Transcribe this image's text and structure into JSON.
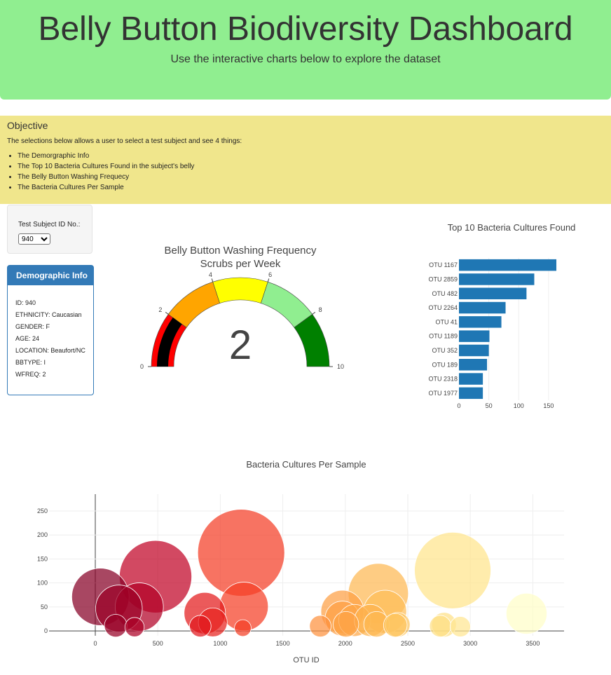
{
  "header": {
    "title": "Belly Button Biodiversity Dashboard",
    "subtitle": "Use the interactive charts below to explore the dataset"
  },
  "objective": {
    "heading": "Objective",
    "intro": "The selections below allows a user to select a test subject and see 4 things:",
    "items": [
      "The Demorgraphic Info",
      "The Top 10 Bacteria Cultures Found in the subject's belly",
      "The Belly Button Washing Frequecy",
      "The Bacteria Cultures Per Sample"
    ]
  },
  "selector": {
    "label": "Test Subject ID No.:",
    "value": "940"
  },
  "demographic": {
    "heading": "Demographic Info",
    "rows": [
      "ID: 940",
      "ETHNICITY: Caucasian",
      "GENDER: F",
      "AGE: 24",
      "LOCATION: Beaufort/NC",
      "BBTYPE: I",
      "WFREQ: 2"
    ]
  },
  "colors": {
    "header_bg": "#90ee90",
    "objective_bg": "#f0e68c",
    "panel_blue": "#337ab7",
    "bar_blue": "#1f77b4"
  },
  "chart_data": [
    {
      "type": "gauge",
      "title": "Belly Button Washing Frequency",
      "subtitle": "Scrubs per Week",
      "value": 2,
      "range": [
        0,
        10
      ],
      "ticks": [
        0,
        2,
        4,
        6,
        8,
        10
      ],
      "steps": [
        {
          "range": [
            0,
            2
          ],
          "color": "#ff0000"
        },
        {
          "range": [
            2,
            4
          ],
          "color": "#ffa500"
        },
        {
          "range": [
            4,
            6
          ],
          "color": "#ffff00"
        },
        {
          "range": [
            6,
            8
          ],
          "color": "#90ee90"
        },
        {
          "range": [
            8,
            10
          ],
          "color": "#008000"
        }
      ],
      "bar_color": "#000000"
    },
    {
      "type": "bar",
      "orientation": "horizontal",
      "title": "Top 10 Bacteria Cultures Found",
      "categories": [
        "OTU 1167",
        "OTU 2859",
        "OTU 482",
        "OTU 2264",
        "OTU 41",
        "OTU 1189",
        "OTU 352",
        "OTU 189",
        "OTU 2318",
        "OTU 1977"
      ],
      "values": [
        163,
        126,
        113,
        78,
        71,
        51,
        50,
        47,
        40,
        40
      ],
      "xticks": [
        0,
        50,
        100,
        150
      ],
      "xlim": [
        0,
        170
      ]
    },
    {
      "type": "scatter",
      "title": "Bacteria Cultures Per Sample",
      "xlabel": "OTU ID",
      "xlim": [
        -370,
        3750
      ],
      "ylim": [
        -10,
        285
      ],
      "xticks": [
        0,
        500,
        1000,
        1500,
        2000,
        2500,
        3000,
        3500
      ],
      "yticks": [
        0,
        50,
        100,
        150,
        200,
        250
      ],
      "colorscale": "YlOrRd",
      "x": [
        41,
        189,
        352,
        482,
        1167,
        1189,
        876,
        940,
        2264,
        2318,
        1977,
        1977,
        2859,
        3450,
        163,
        314,
        840,
        1180,
        1800,
        2075,
        2005,
        2200,
        2250,
        2420,
        2400,
        2760,
        2790,
        2920
      ],
      "y": [
        71,
        47,
        50,
        113,
        163,
        51,
        37,
        18,
        78,
        40,
        40,
        26,
        126,
        36,
        11,
        8,
        10,
        6,
        10,
        22,
        14,
        22,
        14,
        13,
        12,
        10,
        13,
        9
      ],
      "sizes": [
        71,
        47,
        50,
        113,
        163,
        51,
        37,
        18,
        78,
        40,
        40,
        26,
        126,
        36,
        11,
        8,
        10,
        6,
        10,
        22,
        14,
        22,
        14,
        13,
        12,
        10,
        13,
        9
      ]
    }
  ]
}
